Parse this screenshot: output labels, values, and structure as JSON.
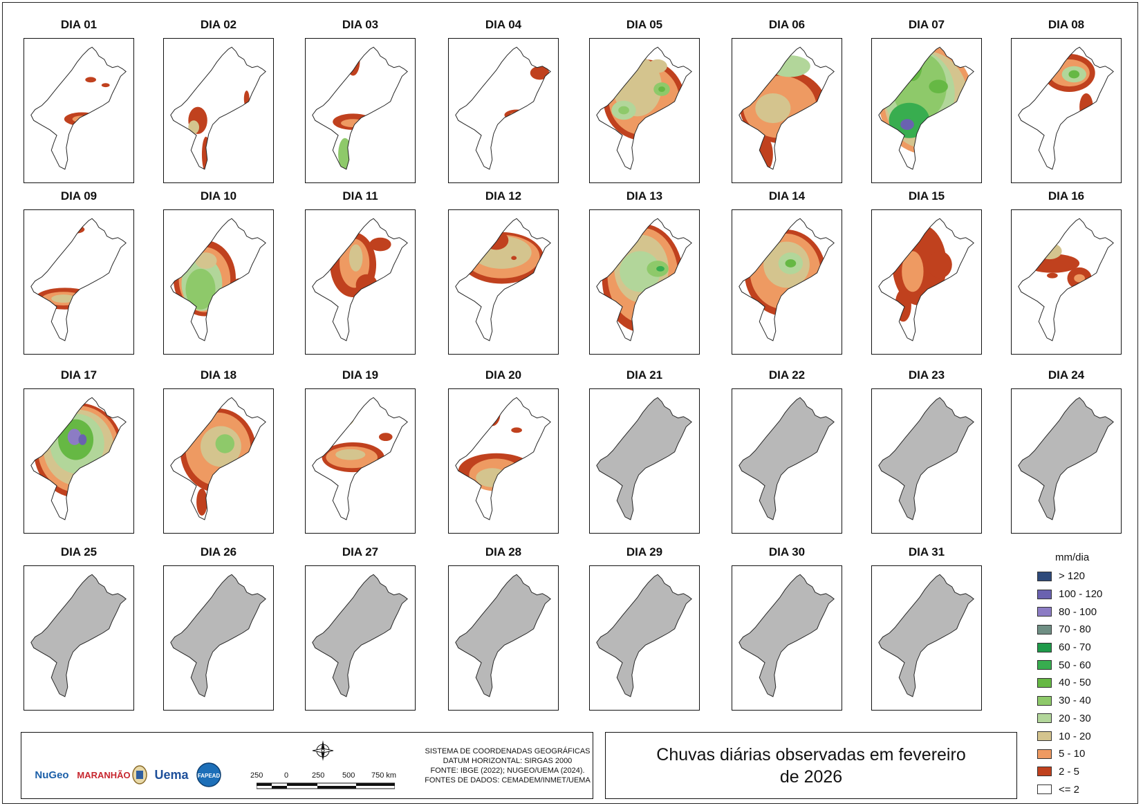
{
  "days": [
    {
      "label": "DIA 01",
      "data": true
    },
    {
      "label": "DIA 02",
      "data": true
    },
    {
      "label": "DIA 03",
      "data": true
    },
    {
      "label": "DIA 04",
      "data": true
    },
    {
      "label": "DIA 05",
      "data": true
    },
    {
      "label": "DIA 06",
      "data": true
    },
    {
      "label": "DIA 07",
      "data": true
    },
    {
      "label": "DIA 08",
      "data": true
    },
    {
      "label": "DIA 09",
      "data": true
    },
    {
      "label": "DIA 10",
      "data": true
    },
    {
      "label": "DIA 11",
      "data": true
    },
    {
      "label": "DIA 12",
      "data": true
    },
    {
      "label": "DIA 13",
      "data": true
    },
    {
      "label": "DIA 14",
      "data": true
    },
    {
      "label": "DIA 15",
      "data": true
    },
    {
      "label": "DIA 16",
      "data": true
    },
    {
      "label": "DIA 17",
      "data": true
    },
    {
      "label": "DIA 18",
      "data": true
    },
    {
      "label": "DIA 19",
      "data": true
    },
    {
      "label": "DIA 20",
      "data": true
    },
    {
      "label": "DIA 21",
      "data": false
    },
    {
      "label": "DIA 22",
      "data": false
    },
    {
      "label": "DIA 23",
      "data": false
    },
    {
      "label": "DIA 24",
      "data": false
    },
    {
      "label": "DIA 25",
      "data": false
    },
    {
      "label": "DIA 26",
      "data": false
    },
    {
      "label": "DIA 27",
      "data": false
    },
    {
      "label": "DIA 28",
      "data": false
    },
    {
      "label": "DIA 29",
      "data": false
    },
    {
      "label": "DIA 30",
      "data": false
    },
    {
      "label": "DIA 31",
      "data": false
    }
  ],
  "legend": {
    "title": "mm/dia",
    "items": [
      {
        "label": "> 120",
        "color": "#2e4a7a"
      },
      {
        "label": "100 - 120",
        "color": "#6a62b0"
      },
      {
        "label": "80 - 100",
        "color": "#8c7cc4"
      },
      {
        "label": "70 - 80",
        "color": "#6f8f84"
      },
      {
        "label": "60 - 70",
        "color": "#1f9a4a"
      },
      {
        "label": "50 - 60",
        "color": "#38ad4f"
      },
      {
        "label": "40 - 50",
        "color": "#66b844"
      },
      {
        "label": "30 - 40",
        "color": "#8ec96a"
      },
      {
        "label": "20 - 30",
        "color": "#b2d69a"
      },
      {
        "label": "10 - 20",
        "color": "#d4c48e"
      },
      {
        "label": "5 - 10",
        "color": "#ee9a62"
      },
      {
        "label": "2 - 5",
        "color": "#c0411e"
      },
      {
        "label": "<= 2",
        "color": "#ffffff"
      }
    ]
  },
  "no_data_color": "#b8b8b8",
  "title": "Chuvas diárias observadas em fevereiro de 2026",
  "credits": {
    "line1": "SISTEMA DE COORDENADAS GEOGRÁFICAS",
    "line2": "DATUM HORIZONTAL: SIRGAS 2000",
    "line3": "FONTE: IBGE (2022); NUGEO/UEMA (2024).",
    "line4": "FONTES DE DADOS: CEMADEM/INMET/UEMA"
  },
  "scale": {
    "ticks": [
      "250",
      "0",
      "250",
      "500",
      "750 km"
    ]
  },
  "logos": [
    "NuGeo",
    "MARANHÃO",
    "Uema",
    "FAPEAD"
  ],
  "icons": {
    "north_arrow": "compass-rose-icon"
  }
}
